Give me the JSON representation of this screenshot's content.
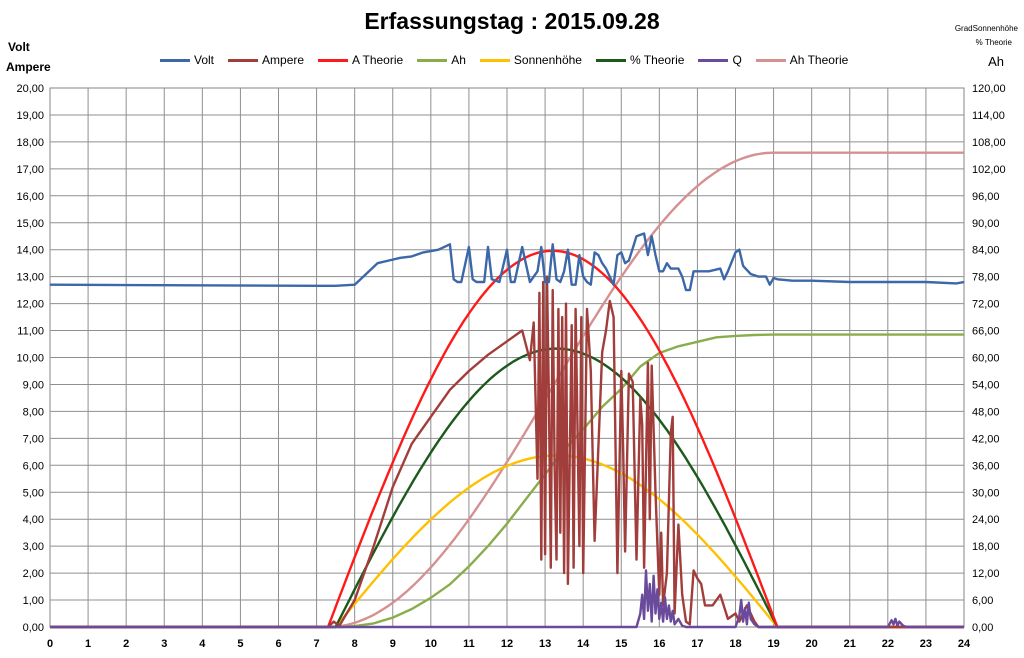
{
  "chart_data": {
    "type": "line",
    "title": "Erfassungstag  : 2015.09.28",
    "ylabel_left": [
      "Volt",
      "Ampere"
    ],
    "ylabel_right": [
      "GradSonnenhöhe",
      "% Theorie",
      "Ah"
    ],
    "xlim": [
      0,
      24
    ],
    "ylim_left": [
      0,
      20
    ],
    "ylim_right": [
      0,
      120
    ],
    "x_ticks": [
      "0",
      "1",
      "2",
      "3",
      "4",
      "5",
      "6",
      "7",
      "8",
      "9",
      "10",
      "11",
      "12",
      "13",
      "14",
      "15",
      "16",
      "17",
      "18",
      "19",
      "20",
      "21",
      "22",
      "23",
      "24"
    ],
    "y_left_ticks": [
      "0,00",
      "1,00",
      "2,00",
      "3,00",
      "4,00",
      "5,00",
      "6,00",
      "7,00",
      "8,00",
      "9,00",
      "10,00",
      "11,00",
      "12,00",
      "13,00",
      "14,00",
      "15,00",
      "16,00",
      "17,00",
      "18,00",
      "19,00",
      "20,00"
    ],
    "y_right_ticks": [
      "0,00",
      "6,00",
      "12,00",
      "18,00",
      "24,00",
      "30,00",
      "36,00",
      "42,00",
      "48,00",
      "54,00",
      "60,00",
      "66,00",
      "72,00",
      "78,00",
      "84,00",
      "90,00",
      "96,00",
      "102,00",
      "108,00",
      "114,00",
      "120,00"
    ],
    "grid": true,
    "legend_position": "top",
    "series": [
      {
        "name": "Volt",
        "color": "#3c67a8",
        "axis": "left",
        "x": [
          0,
          7,
          7.5,
          8.0,
          8.3,
          8.6,
          8.9,
          9.2,
          9.5,
          9.8,
          10.2,
          10.5,
          10.6,
          10.7,
          10.8,
          11.0,
          11.1,
          11.2,
          11.4,
          11.5,
          11.6,
          11.8,
          12.0,
          12.1,
          12.2,
          12.4,
          12.6,
          12.8,
          12.9,
          13.0,
          13.1,
          13.2,
          13.3,
          13.4,
          13.5,
          13.6,
          13.7,
          13.8,
          13.9,
          14.0,
          14.1,
          14.2,
          14.3,
          14.4,
          14.5,
          14.6,
          14.7,
          14.8,
          14.9,
          15.0,
          15.1,
          15.2,
          15.4,
          15.6,
          15.7,
          15.8,
          15.9,
          16.0,
          16.1,
          16.2,
          16.3,
          16.5,
          16.6,
          16.7,
          16.8,
          16.9,
          17.0,
          17.3,
          17.6,
          17.7,
          17.8,
          18.0,
          18.1,
          18.2,
          18.4,
          18.6,
          18.8,
          18.9,
          19.0,
          19.1,
          19.5,
          20,
          21,
          22,
          23,
          23.8,
          24
        ],
        "y": [
          12.7,
          12.66,
          12.66,
          12.7,
          13.1,
          13.5,
          13.6,
          13.7,
          13.75,
          13.9,
          14.0,
          14.2,
          12.9,
          12.8,
          12.8,
          14.1,
          12.9,
          12.8,
          12.8,
          14.1,
          12.9,
          12.8,
          14.0,
          12.8,
          12.8,
          14.1,
          12.8,
          13.2,
          14.1,
          12.8,
          12.8,
          14.2,
          12.9,
          12.8,
          13.2,
          14.0,
          12.7,
          12.7,
          13.8,
          13.0,
          12.8,
          12.7,
          13.9,
          13.8,
          13.5,
          13.3,
          13.0,
          12.7,
          13.8,
          13.9,
          13.5,
          13.6,
          14.5,
          14.6,
          13.8,
          14.5,
          13.8,
          13.2,
          13.2,
          13.5,
          13.3,
          13.3,
          13.0,
          12.5,
          12.5,
          13.2,
          13.2,
          13.2,
          13.3,
          12.9,
          13.2,
          13.9,
          14.0,
          13.4,
          13.1,
          13.0,
          13.0,
          12.7,
          12.95,
          12.9,
          12.85,
          12.85,
          12.8,
          12.8,
          12.8,
          12.75,
          12.8
        ]
      },
      {
        "name": "Ampere",
        "color": "#a13d3a",
        "axis": "left",
        "x": [
          0,
          7.3,
          7.45,
          7.6,
          8,
          8.5,
          9,
          9.5,
          10,
          10.5,
          11,
          11.5,
          12,
          12.4,
          12.6,
          12.7,
          12.8,
          12.85,
          12.9,
          12.95,
          13.0,
          13.05,
          13.1,
          13.15,
          13.2,
          13.25,
          13.3,
          13.35,
          13.4,
          13.45,
          13.5,
          13.55,
          13.6,
          13.7,
          13.75,
          13.8,
          13.9,
          13.95,
          14.0,
          14.1,
          14.2,
          14.3,
          14.5,
          14.6,
          14.7,
          14.8,
          14.9,
          15.0,
          15.05,
          15.1,
          15.2,
          15.3,
          15.4,
          15.5,
          15.55,
          15.6,
          15.7,
          15.75,
          15.8,
          15.9,
          16.0,
          16.05,
          16.1,
          16.2,
          16.3,
          16.35,
          16.4,
          16.5,
          16.6,
          16.7,
          16.8,
          16.9,
          17.0,
          17.1,
          17.2,
          17.4,
          17.6,
          17.8,
          18.0,
          18.1,
          18.3,
          18.5,
          18.6,
          24
        ],
        "y": [
          0,
          0,
          0.2,
          0.05,
          1.0,
          3.0,
          5.2,
          6.8,
          7.8,
          8.8,
          9.5,
          10.1,
          10.6,
          11.0,
          9.9,
          11.3,
          5.5,
          12.4,
          2.5,
          12.8,
          2.7,
          13.0,
          8.5,
          2.2,
          12.5,
          6.0,
          2.5,
          11.8,
          3.5,
          11.5,
          2.0,
          12.0,
          1.6,
          11.2,
          2.2,
          11.8,
          3.0,
          11.5,
          2.0,
          11.8,
          9.5,
          3.2,
          10.2,
          11.0,
          12.1,
          11.5,
          2.0,
          9.5,
          6.5,
          2.8,
          9.4,
          9.1,
          2.5,
          8.5,
          7.5,
          2.2,
          9.8,
          4.0,
          9.7,
          5.0,
          1.2,
          3.5,
          0.8,
          2.0,
          7.2,
          7.8,
          0.5,
          3.8,
          1.2,
          0.2,
          0.1,
          2.1,
          1.8,
          1.6,
          0.8,
          0.8,
          1.2,
          0.3,
          0.5,
          0.2,
          0.8,
          0.2,
          0.0,
          0
        ]
      },
      {
        "name": "A Theorie",
        "color": "#ff1a1a",
        "axis": "left",
        "curve": "sin",
        "x_start": 7.3,
        "x_end": 19.1,
        "peak": 13.96
      },
      {
        "name": "Ah",
        "color": "#8aad4b",
        "axis": "right",
        "x": [
          0,
          7.7,
          8,
          8.5,
          9,
          9.5,
          10,
          10.5,
          11,
          11.5,
          12,
          12.5,
          13,
          13.5,
          14,
          14.5,
          15,
          15.5,
          16,
          16.5,
          17,
          17.5,
          18,
          18.5,
          19,
          20,
          21,
          22,
          23,
          24
        ],
        "y": [
          0,
          0,
          0.2,
          0.8,
          2.1,
          4.0,
          6.5,
          9.5,
          13.5,
          18,
          23,
          28.5,
          34,
          39.5,
          44,
          49,
          53,
          58,
          61,
          62.5,
          63.5,
          64.5,
          64.8,
          65,
          65.1,
          65.1,
          65.1,
          65.1,
          65.1,
          65.1
        ]
      },
      {
        "name": "Sonnenhöhe",
        "color": "#ffc000",
        "axis": "right",
        "curve": "sin",
        "x_start": 7.5,
        "x_end": 19.1,
        "peak": 38.2
      },
      {
        "name": "% Theorie",
        "color": "#1c5a1c",
        "axis": "left",
        "curve": "sin",
        "x_start": 7.5,
        "x_end": 19.1,
        "peak": 10.33
      },
      {
        "name": "Q",
        "color": "#6a4a9b",
        "axis": "left",
        "x": [
          0,
          15.4,
          15.5,
          15.55,
          15.6,
          15.65,
          15.7,
          15.75,
          15.8,
          15.85,
          15.9,
          15.95,
          16.0,
          16.05,
          16.1,
          16.15,
          16.2,
          16.25,
          16.3,
          16.35,
          16.4,
          16.5,
          16.6,
          16.7,
          18.0,
          18.1,
          18.15,
          18.2,
          18.25,
          18.3,
          18.35,
          18.4,
          18.5,
          18.6,
          22.0,
          22.1,
          22.15,
          22.2,
          22.25,
          22.3,
          22.4,
          22.5,
          24
        ],
        "y": [
          0,
          0,
          0.5,
          1.2,
          0.3,
          2.1,
          0.6,
          1.6,
          0.2,
          1.9,
          0.5,
          1.4,
          0.3,
          0.9,
          0.2,
          1.1,
          0.3,
          0.8,
          0.2,
          0.6,
          0.1,
          0.3,
          0.05,
          0,
          0,
          0.4,
          1.0,
          0.2,
          0.7,
          0.1,
          0.9,
          0.3,
          0.1,
          0,
          0,
          0.25,
          0.1,
          0.3,
          0.05,
          0.2,
          0.05,
          0,
          0
        ]
      },
      {
        "name": "Ah Theorie",
        "color": "#d69090",
        "axis": "right",
        "curve": "cum",
        "x_start": 7.3,
        "x_end": 19.0,
        "peak": 105.6
      }
    ]
  }
}
